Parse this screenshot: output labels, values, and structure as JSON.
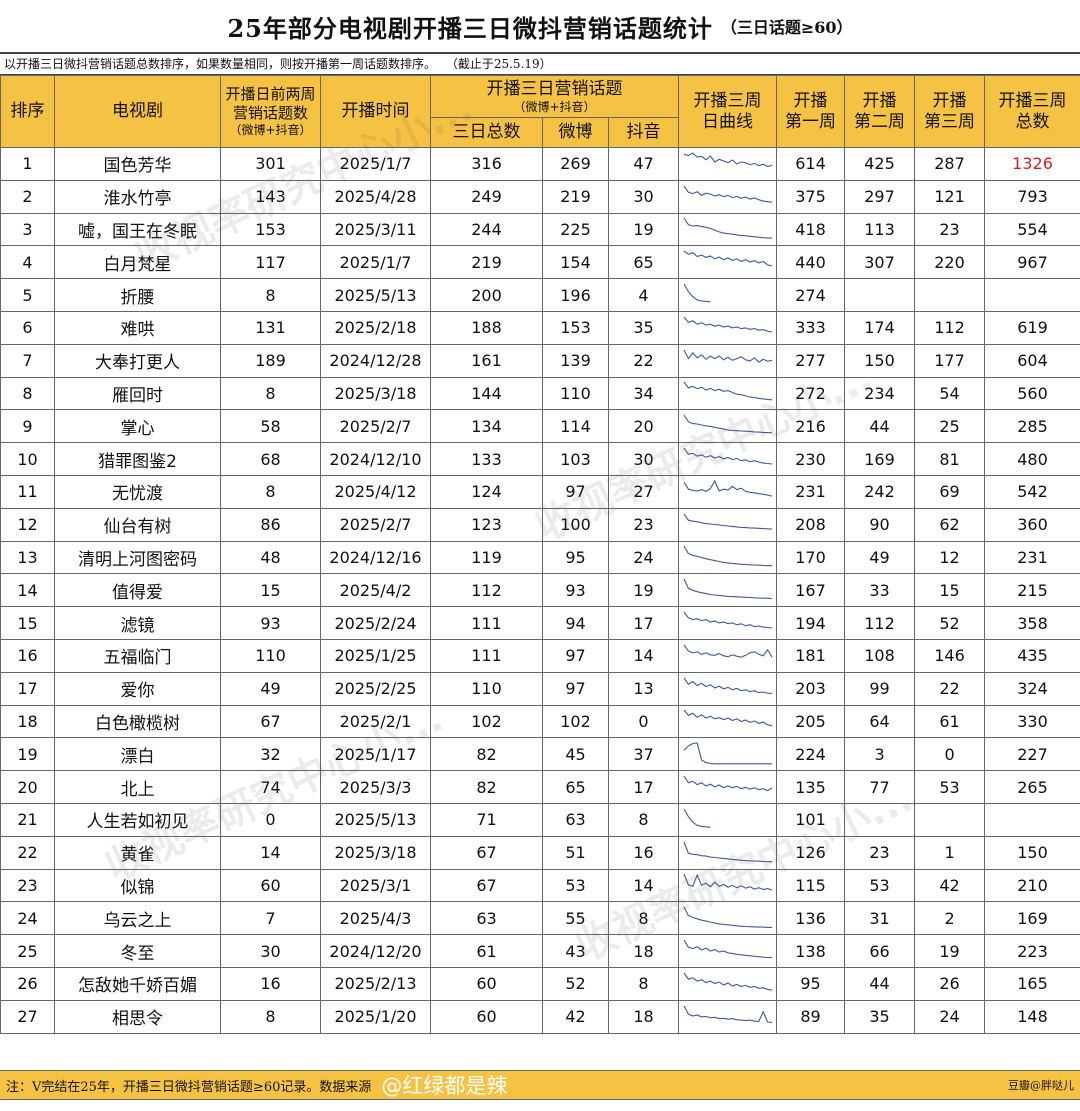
{
  "title": {
    "main": "25年部分电视剧开播三日微抖营销话题统计",
    "sub": "（三日话题≥60）"
  },
  "note": {
    "sort_rule": "以开播三日微抖营销话题总数排序，如果数量相同，则按开播第一周话题数排序。",
    "cutoff": "（截止于25.5.19）"
  },
  "headers": {
    "rank": "排序",
    "drama": "电视剧",
    "pre_two_weeks_l1": "开播日前两周",
    "pre_two_weeks_l2": "营销话题数",
    "pre_two_weeks_l3": "（微博+抖音）",
    "air_date": "开播时间",
    "three_day_l1": "开播三日营销话题",
    "three_day_l2": "（微博+抖音）",
    "three_day_total": "三日总数",
    "weibo": "微博",
    "douyin": "抖音",
    "curve_l1": "开播三周",
    "curve_l2": "日曲线",
    "week1_l1": "开播",
    "week1_l2": "第一周",
    "week2_l1": "开播",
    "week2_l2": "第二周",
    "week3_l1": "开播",
    "week3_l2": "第三周",
    "three_week_total_l1": "开播三周",
    "three_week_total_l2": "总数"
  },
  "chart_data": {
    "type": "table",
    "title": "25年部分电视剧开播三日微抖营销话题统计",
    "columns": [
      "排序",
      "电视剧",
      "开播日前两周营销话题数（微博+抖音）",
      "开播时间",
      "三日总数",
      "微博",
      "抖音",
      "开播三周日曲线",
      "开播第一周",
      "开播第二周",
      "开播第三周",
      "开播三周总数"
    ],
    "rows": [
      {
        "rank": "1",
        "name": "国色芳华",
        "pre": "301",
        "date": "2025/1/7",
        "total3": "316",
        "weibo": "269",
        "douyin": "47",
        "w1": "614",
        "w2": "425",
        "w3": "287",
        "total": "1326",
        "highlight": true,
        "spark": [
          98,
          92,
          104,
          85,
          88,
          72,
          90,
          61,
          74,
          66,
          58,
          71,
          52,
          62,
          57,
          49,
          55,
          44,
          51,
          40,
          46
        ]
      },
      {
        "rank": "2",
        "name": "淮水竹亭",
        "pre": "143",
        "date": "2025/4/28",
        "total3": "249",
        "weibo": "219",
        "douyin": "30",
        "w1": "375",
        "w2": "297",
        "w3": "121",
        "total": "793",
        "spark": [
          95,
          68,
          62,
          70,
          55,
          64,
          60,
          52,
          58,
          49,
          55,
          45,
          50,
          42,
          47,
          38,
          44,
          36,
          30,
          27,
          25
        ]
      },
      {
        "rank": "3",
        "name": "嘘，国王在冬眠",
        "pre": "153",
        "date": "2025/3/11",
        "total3": "244",
        "weibo": "225",
        "douyin": "19",
        "w1": "418",
        "w2": "113",
        "w3": "23",
        "total": "554",
        "spark": [
          95,
          66,
          60,
          62,
          58,
          55,
          50,
          42,
          35,
          30,
          27,
          25,
          22,
          20,
          18,
          16,
          14,
          12,
          10,
          9,
          8
        ]
      },
      {
        "rank": "4",
        "name": "白月梵星",
        "pre": "117",
        "date": "2025/1/7",
        "total3": "219",
        "weibo": "154",
        "douyin": "65",
        "w1": "440",
        "w2": "307",
        "w3": "220",
        "total": "967",
        "spark": [
          96,
          82,
          88,
          72,
          78,
          68,
          74,
          62,
          70,
          58,
          66,
          55,
          62,
          50,
          58,
          48,
          54,
          44,
          50,
          36,
          30
        ]
      },
      {
        "rank": "5",
        "name": "折腰",
        "pre": "8",
        "date": "2025/5/13",
        "total3": "200",
        "weibo": "196",
        "douyin": "4",
        "w1": "274",
        "w2": "",
        "w3": "",
        "total": "",
        "spark": [
          95,
          62,
          40,
          26,
          22,
          20,
          18
        ]
      },
      {
        "rank": "6",
        "name": "难哄",
        "pre": "131",
        "date": "2025/2/18",
        "total3": "188",
        "weibo": "153",
        "douyin": "35",
        "w1": "333",
        "w2": "174",
        "w3": "112",
        "total": "619",
        "spark": [
          95,
          72,
          78,
          64,
          70,
          60,
          64,
          55,
          60,
          52,
          56,
          48,
          52,
          45,
          48,
          42,
          45,
          38,
          40,
          34,
          30
        ]
      },
      {
        "rank": "7",
        "name": "大奉打更人",
        "pre": "189",
        "date": "2024/12/28",
        "total3": "161",
        "weibo": "139",
        "douyin": "22",
        "w1": "277",
        "w2": "150",
        "w3": "177",
        "total": "604",
        "spark": [
          90,
          55,
          78,
          58,
          70,
          52,
          65,
          55,
          66,
          50,
          60,
          48,
          55,
          62,
          50,
          45,
          58,
          40,
          52,
          44,
          48
        ]
      },
      {
        "rank": "8",
        "name": "雁回时",
        "pre": "8",
        "date": "2025/3/18",
        "total3": "144",
        "weibo": "110",
        "douyin": "34",
        "w1": "272",
        "w2": "234",
        "w3": "54",
        "total": "560",
        "spark": [
          95,
          70,
          76,
          66,
          72,
          60,
          68,
          58,
          64,
          55,
          58,
          50,
          42,
          40,
          35,
          30,
          28,
          24,
          22,
          20,
          18
        ]
      },
      {
        "rank": "9",
        "name": "掌心",
        "pre": "58",
        "date": "2025/2/7",
        "total3": "134",
        "weibo": "114",
        "douyin": "20",
        "w1": "216",
        "w2": "44",
        "w3": "25",
        "total": "285",
        "spark": [
          95,
          66,
          58,
          56,
          52,
          48,
          46,
          42,
          38,
          34,
          30,
          28,
          27,
          26,
          25,
          24,
          22,
          21,
          20,
          19,
          18
        ]
      },
      {
        "rank": "10",
        "name": "猎罪图鉴2",
        "pre": "68",
        "date": "2024/12/10",
        "total3": "133",
        "weibo": "103",
        "douyin": "30",
        "w1": "230",
        "w2": "169",
        "w3": "81",
        "total": "480",
        "spark": [
          95,
          68,
          72,
          60,
          65,
          55,
          62,
          52,
          58,
          48,
          54,
          45,
          50,
          40,
          44,
          36,
          40,
          34,
          30,
          28,
          26
        ]
      },
      {
        "rank": "11",
        "name": "无忧渡",
        "pre": "8",
        "date": "2025/4/12",
        "total3": "124",
        "weibo": "97",
        "douyin": "27",
        "w1": "231",
        "w2": "242",
        "w3": "69",
        "total": "542",
        "spark": [
          90,
          60,
          55,
          52,
          58,
          50,
          62,
          95,
          52,
          60,
          56,
          72,
          58,
          64,
          50,
          46,
          44,
          40,
          38,
          34,
          30
        ]
      },
      {
        "rank": "12",
        "name": "仙台有树",
        "pre": "86",
        "date": "2025/2/7",
        "total3": "123",
        "weibo": "100",
        "douyin": "23",
        "w1": "208",
        "w2": "90",
        "w3": "62",
        "total": "360",
        "spark": [
          92,
          66,
          62,
          60,
          55,
          52,
          50,
          48,
          46,
          44,
          42,
          40,
          38,
          36,
          35,
          34,
          33,
          32,
          31,
          30,
          29
        ]
      },
      {
        "rank": "13",
        "name": "清明上河图密码",
        "pre": "48",
        "date": "2024/12/16",
        "total3": "119",
        "weibo": "95",
        "douyin": "24",
        "w1": "170",
        "w2": "49",
        "w3": "12",
        "total": "231",
        "spark": [
          95,
          62,
          55,
          50,
          45,
          40,
          36,
          32,
          28,
          24,
          22,
          20,
          18,
          16,
          15,
          14,
          13,
          12,
          11,
          10,
          10
        ]
      },
      {
        "rank": "14",
        "name": "值得爱",
        "pre": "15",
        "date": "2025/4/2",
        "total3": "112",
        "weibo": "93",
        "douyin": "19",
        "w1": "167",
        "w2": "33",
        "w3": "15",
        "total": "215",
        "spark": [
          95,
          55,
          46,
          40,
          36,
          32,
          28,
          26,
          24,
          22,
          20,
          19,
          18,
          17,
          16,
          15,
          14,
          13,
          12,
          12,
          11
        ]
      },
      {
        "rank": "15",
        "name": "滤镜",
        "pre": "93",
        "date": "2025/2/24",
        "total3": "111",
        "weibo": "94",
        "douyin": "17",
        "w1": "194",
        "w2": "112",
        "w3": "52",
        "total": "358",
        "spark": [
          95,
          70,
          62,
          66,
          58,
          62,
          52,
          56,
          48,
          52,
          45,
          48,
          40,
          44,
          36,
          40,
          32,
          34,
          30,
          28,
          26
        ]
      },
      {
        "rank": "16",
        "name": "五福临门",
        "pre": "110",
        "date": "2025/1/25",
        "total3": "111",
        "weibo": "97",
        "douyin": "14",
        "w1": "181",
        "w2": "108",
        "w3": "146",
        "total": "435",
        "spark": [
          90,
          66,
          58,
          62,
          52,
          58,
          50,
          48,
          55,
          46,
          42,
          50,
          44,
          40,
          48,
          58,
          62,
          52,
          46,
          70,
          40
        ]
      },
      {
        "rank": "17",
        "name": "爱你",
        "pre": "49",
        "date": "2025/2/25",
        "total3": "110",
        "weibo": "97",
        "douyin": "13",
        "w1": "203",
        "w2": "99",
        "w3": "22",
        "total": "324",
        "spark": [
          95,
          68,
          80,
          62,
          72,
          58,
          66,
          52,
          60,
          48,
          55,
          44,
          50,
          40,
          44,
          36,
          40,
          32,
          34,
          30,
          28
        ]
      },
      {
        "rank": "18",
        "name": "白色橄榄树",
        "pre": "67",
        "date": "2025/2/1",
        "total3": "102",
        "weibo": "102",
        "douyin": "0",
        "w1": "205",
        "w2": "64",
        "w3": "61",
        "total": "330",
        "spark": [
          92,
          70,
          78,
          62,
          72,
          58,
          66,
          55,
          60,
          52,
          58,
          48,
          55,
          44,
          50,
          40,
          46,
          36,
          42,
          30,
          26
        ]
      },
      {
        "rank": "19",
        "name": "漂白",
        "pre": "32",
        "date": "2025/1/17",
        "total3": "82",
        "weibo": "45",
        "douyin": "37",
        "w1": "224",
        "w2": "3",
        "w3": "0",
        "total": "227",
        "spark": [
          60,
          78,
          88,
          90,
          20,
          10,
          6,
          5,
          5,
          5,
          5,
          5,
          5,
          5,
          5,
          5,
          5,
          5,
          5,
          5,
          5
        ]
      },
      {
        "rank": "20",
        "name": "北上",
        "pre": "74",
        "date": "2025/3/3",
        "total3": "82",
        "weibo": "65",
        "douyin": "17",
        "w1": "135",
        "w2": "77",
        "w3": "53",
        "total": "265",
        "spark": [
          95,
          66,
          72,
          58,
          66,
          52,
          60,
          48,
          56,
          45,
          52,
          44,
          50,
          40,
          46,
          38,
          44,
          36,
          40,
          32,
          44
        ]
      },
      {
        "rank": "21",
        "name": "人生若如初见",
        "pre": "0",
        "date": "2025/5/13",
        "total3": "71",
        "weibo": "63",
        "douyin": "8",
        "w1": "101",
        "w2": "",
        "w3": "",
        "total": "",
        "spark": [
          95,
          62,
          38,
          24,
          20,
          18,
          16
        ]
      },
      {
        "rank": "22",
        "name": "黄雀",
        "pre": "14",
        "date": "2025/3/18",
        "total3": "67",
        "weibo": "51",
        "douyin": "16",
        "w1": "126",
        "w2": "23",
        "w3": "1",
        "total": "150",
        "spark": [
          95,
          46,
          42,
          40,
          36,
          34,
          30,
          28,
          26,
          24,
          22,
          20,
          18,
          16,
          15,
          14,
          13,
          12,
          11,
          10,
          10
        ]
      },
      {
        "rank": "23",
        "name": "似锦",
        "pre": "60",
        "date": "2025/3/1",
        "total3": "67",
        "weibo": "53",
        "douyin": "14",
        "w1": "115",
        "w2": "53",
        "w3": "42",
        "total": "210",
        "spark": [
          95,
          48,
          42,
          90,
          46,
          55,
          40,
          60,
          42,
          50,
          38,
          46,
          36,
          44,
          34,
          40,
          30,
          36,
          28,
          32,
          26
        ]
      },
      {
        "rank": "24",
        "name": "乌云之上",
        "pre": "7",
        "date": "2025/4/3",
        "total3": "63",
        "weibo": "55",
        "douyin": "8",
        "w1": "136",
        "w2": "31",
        "w3": "2",
        "total": "169",
        "spark": [
          95,
          58,
          50,
          44,
          38,
          34,
          30,
          26,
          22,
          20,
          18,
          16,
          14,
          12,
          11,
          10,
          9,
          8,
          8,
          7,
          7
        ]
      },
      {
        "rank": "25",
        "name": "冬至",
        "pre": "30",
        "date": "2024/12/20",
        "total3": "61",
        "weibo": "43",
        "douyin": "18",
        "w1": "138",
        "w2": "66",
        "w3": "19",
        "total": "223",
        "spark": [
          92,
          62,
          56,
          64,
          50,
          58,
          46,
          52,
          42,
          46,
          38,
          36,
          32,
          30,
          28,
          26,
          24,
          22,
          20,
          19,
          18
        ]
      },
      {
        "rank": "26",
        "name": "怎敌她千娇百媚",
        "pre": "16",
        "date": "2025/2/13",
        "total3": "60",
        "weibo": "52",
        "douyin": "8",
        "w1": "95",
        "w2": "44",
        "w3": "26",
        "total": "165",
        "spark": [
          92,
          66,
          72,
          58,
          64,
          52,
          58,
          48,
          54,
          42,
          50,
          38,
          44,
          36,
          40,
          32,
          36,
          28,
          30,
          24,
          20
        ]
      },
      {
        "rank": "27",
        "name": "相思令",
        "pre": "8",
        "date": "2025/1/20",
        "total3": "60",
        "weibo": "42",
        "douyin": "18",
        "w1": "89",
        "w2": "35",
        "w3": "24",
        "total": "148",
        "spark": [
          95,
          60,
          52,
          56,
          48,
          50,
          44,
          46,
          40,
          42,
          38,
          40,
          36,
          34,
          32,
          34,
          30,
          28,
          70,
          26,
          24
        ]
      }
    ]
  },
  "colors": {
    "header_bg": "#f6c243",
    "highlight": "#d42020",
    "spark_line": "#3a5a9a"
  },
  "footer": {
    "note": "注：V完结在25年，开播三日微抖营销话题≥60记录。数据来源",
    "handle": "@红绿都是辣",
    "credit": "豆瓣@胖哒儿"
  },
  "watermark": {
    "text": "收视率研究中心小..."
  }
}
